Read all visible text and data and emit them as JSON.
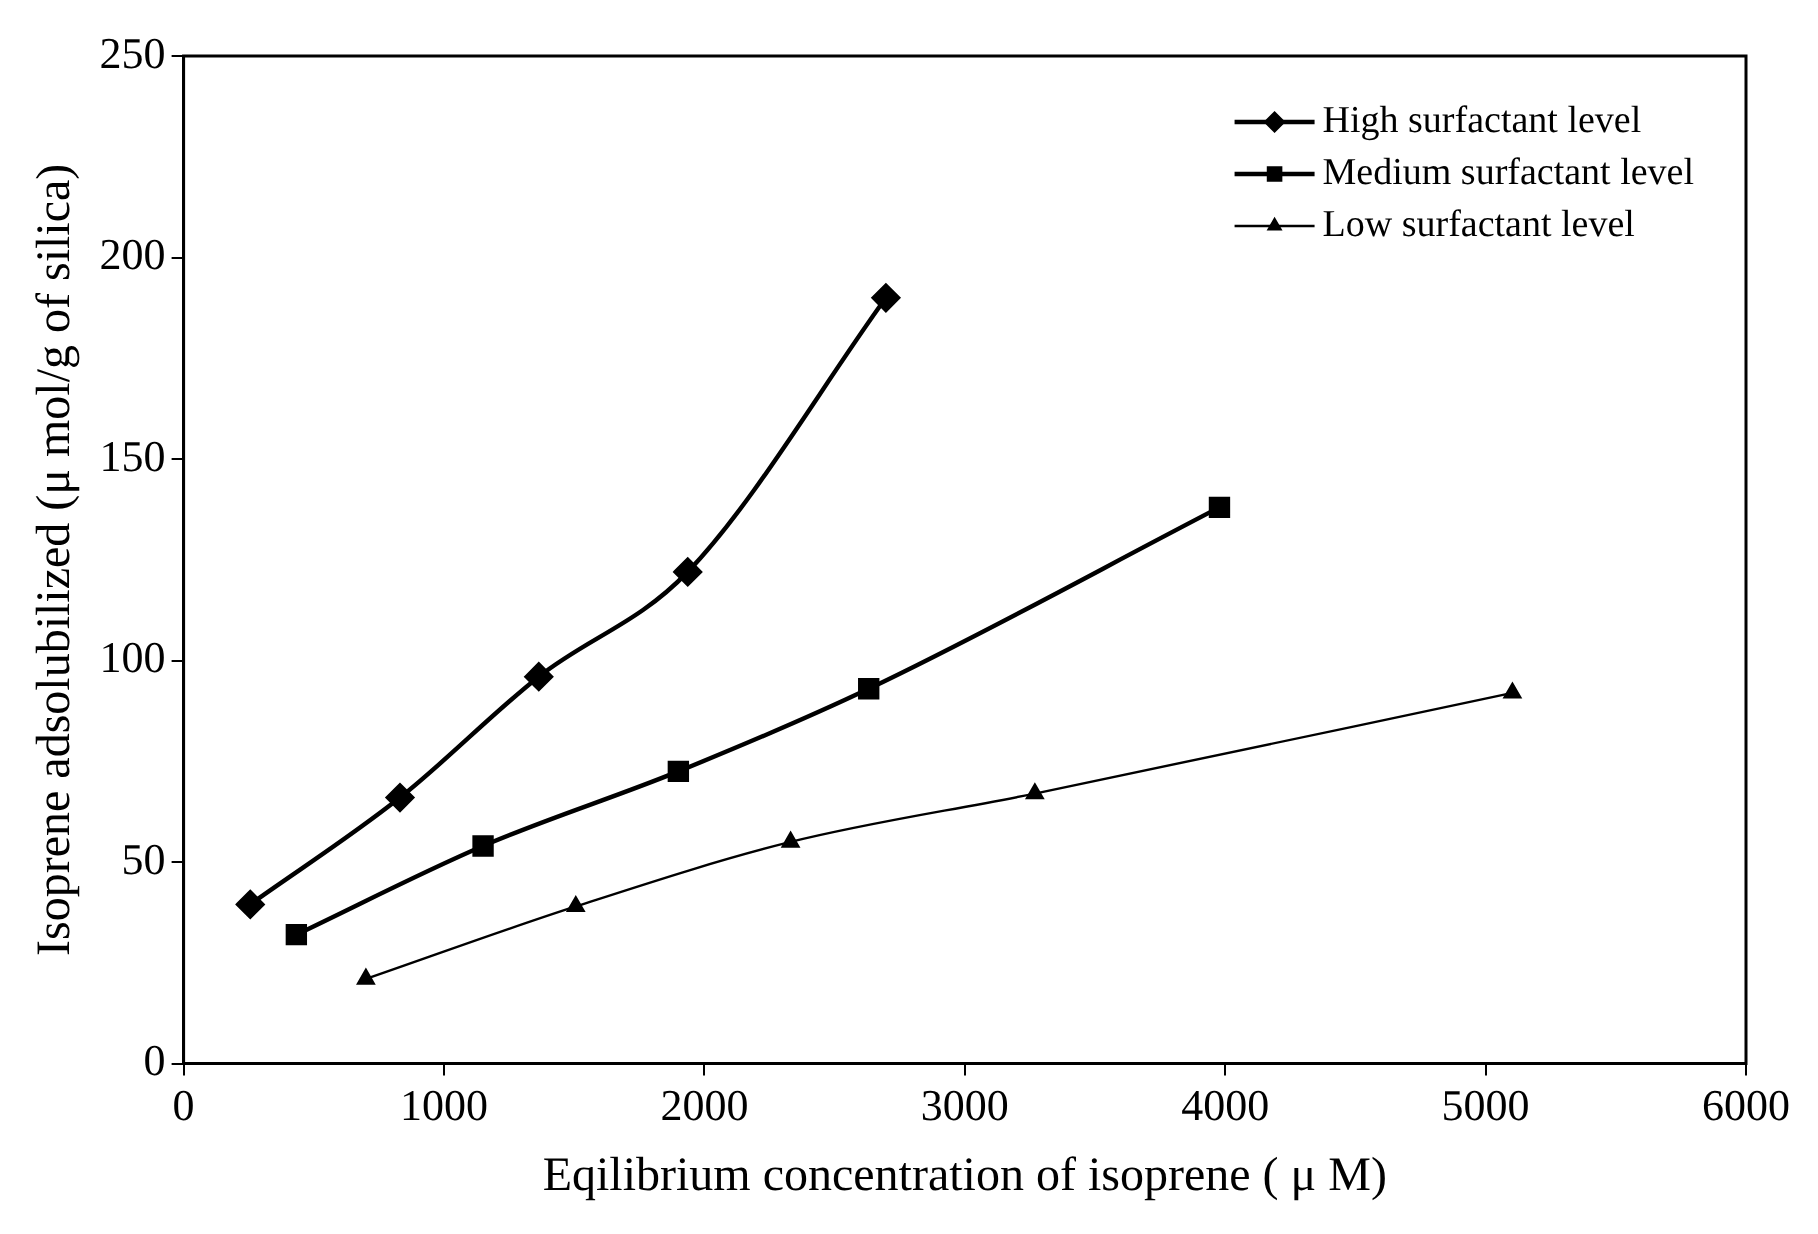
{
  "chart_data": {
    "type": "line",
    "xlabel": "Eqilibrium concentration of isoprene ( μ M)",
    "ylabel": "Isoprene adsolubilized (μ mol/g of silica)",
    "xlim": [
      0,
      6000
    ],
    "xticks": [
      0,
      1000,
      2000,
      3000,
      4000,
      5000,
      6000
    ],
    "ylim": [
      0,
      250
    ],
    "yticks": [
      0,
      50,
      100,
      150,
      200,
      250
    ],
    "grid": false,
    "legend": "top right",
    "line_style": "solid",
    "series": [
      {
        "name": "High surfactant level",
        "color": "#000000",
        "marker": "diamond",
        "x": [
          256,
          831,
          1364,
          1936,
          2697
        ],
        "values": [
          39.5,
          66,
          96,
          122,
          190
        ]
      },
      {
        "name": "Medium surfactant level",
        "color": "#000000",
        "marker": "square",
        "x": [
          433,
          1150,
          1900,
          2631,
          3978
        ],
        "values": [
          32,
          54,
          72.5,
          93,
          138
        ]
      },
      {
        "name": "Low surfactant level",
        "color": "#000000",
        "marker": "triangle",
        "x": [
          700,
          1506,
          2331,
          3269,
          5103
        ],
        "values": [
          21,
          39,
          55,
          67,
          92
        ]
      }
    ]
  }
}
